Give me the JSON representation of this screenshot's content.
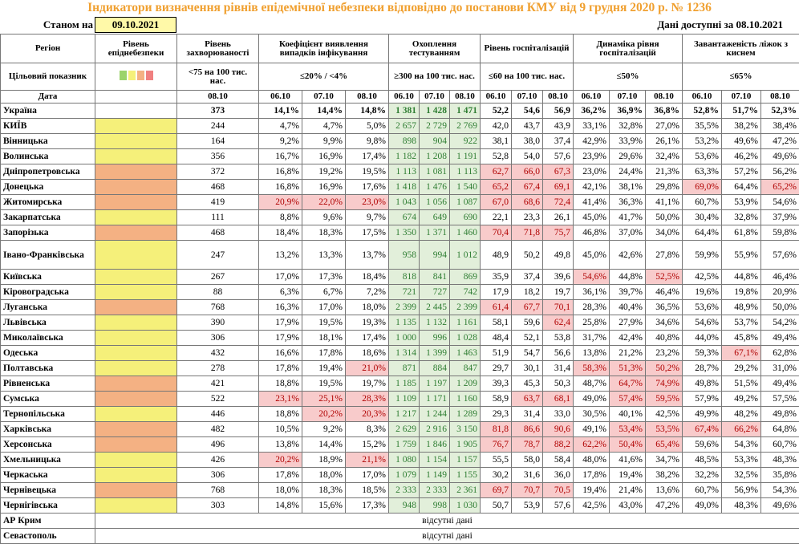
{
  "title": "Індикатори визначення рівнів епідемічної небезпеки відповідно до постанови КМУ від 9 грудня 2020 р. № 1236",
  "as_of_label": "Станом на",
  "as_of_date": "09.10.2021",
  "data_label": "Дані доступні за",
  "data_date": "08.10.2021",
  "header": {
    "region": "Регіон",
    "target": "Цільовий показник",
    "date": "Дата",
    "level": "Рівень епіднебезпеки",
    "groups": [
      {
        "name": "Рівень захворюваності",
        "target": "<75 на 100 тис. нас.",
        "dates": [
          "08.10"
        ]
      },
      {
        "name": "Коефіцієнт виявлення випадків інфікування",
        "target": "≤20% / <4%",
        "dates": [
          "06.10",
          "07.10",
          "08.10"
        ]
      },
      {
        "name": "Охоплення тестуванням",
        "target": "≥300 на 100 тис. нас.",
        "dates": [
          "06.10",
          "07.10",
          "08.10"
        ]
      },
      {
        "name": "Рівень госпіталізацій",
        "target": "≤60 на 100 тис. нас.",
        "dates": [
          "06.10",
          "07.10",
          "08.10"
        ]
      },
      {
        "name": "Динаміка рівня госпіталізацій",
        "target": "≤50%",
        "dates": [
          "06.10",
          "07.10",
          "08.10"
        ]
      },
      {
        "name": "Завантаженість ліжок з киснем",
        "target": "≤65%",
        "dates": [
          "06.10",
          "07.10",
          "08.10"
        ]
      }
    ]
  },
  "rows": [
    {
      "region": "Україна",
      "cells": [
        "373",
        "14,1%",
        "14,4%",
        "14,8%",
        "1 381",
        "1 428",
        "1 471",
        "52,2",
        "54,6",
        "56,9",
        "36,2%",
        "36,9%",
        "36,8%",
        "52,8%",
        "51,7%",
        "52,3%"
      ],
      "highlight": []
    },
    {
      "region": "КИЇВ",
      "level": "#f5f07a",
      "cells": [
        "244",
        "4,7%",
        "4,7%",
        "5,0%",
        "2 657",
        "2 729",
        "2 769",
        "42,0",
        "43,7",
        "43,9",
        "33,1%",
        "32,8%",
        "27,0%",
        "35,5%",
        "38,2%",
        "38,4%"
      ],
      "highlight": []
    },
    {
      "region": "Вінницька",
      "level": "#f5f07a",
      "cells": [
        "164",
        "9,2%",
        "9,9%",
        "9,8%",
        "898",
        "904",
        "922",
        "38,1",
        "38,0",
        "37,4",
        "42,9%",
        "33,9%",
        "26,1%",
        "53,2%",
        "49,6%",
        "47,2%"
      ],
      "highlight": []
    },
    {
      "region": "Волинська",
      "level": "#f5f07a",
      "cells": [
        "356",
        "16,7%",
        "16,9%",
        "17,4%",
        "1 182",
        "1 208",
        "1 191",
        "52,8",
        "54,0",
        "57,6",
        "23,9%",
        "29,6%",
        "32,4%",
        "53,6%",
        "46,2%",
        "49,6%"
      ],
      "highlight": []
    },
    {
      "region": "Дніпропетровська",
      "level": "#f4b183",
      "cells": [
        "372",
        "16,8%",
        "19,2%",
        "19,5%",
        "1 113",
        "1 081",
        "1 113",
        "62,7",
        "66,0",
        "67,3",
        "23,0%",
        "24,4%",
        "21,3%",
        "63,3%",
        "57,2%",
        "56,2%"
      ],
      "highlight": [
        7,
        8,
        9
      ]
    },
    {
      "region": "Донецька",
      "level": "#f4b183",
      "cells": [
        "468",
        "16,8%",
        "16,9%",
        "17,6%",
        "1 418",
        "1 476",
        "1 540",
        "65,2",
        "67,4",
        "69,1",
        "42,1%",
        "38,1%",
        "29,8%",
        "69,0%",
        "64,4%",
        "65,2%"
      ],
      "highlight": [
        7,
        8,
        9,
        13,
        15
      ]
    },
    {
      "region": "Житомирська",
      "level": "#f4b183",
      "cells": [
        "419",
        "20,9%",
        "22,0%",
        "23,0%",
        "1 043",
        "1 056",
        "1 087",
        "67,0",
        "68,6",
        "72,4",
        "41,4%",
        "36,3%",
        "41,1%",
        "60,7%",
        "53,9%",
        "54,6%"
      ],
      "highlight": [
        1,
        2,
        3,
        7,
        8,
        9
      ]
    },
    {
      "region": "Закарпатська",
      "level": "#f5f07a",
      "cells": [
        "111",
        "8,8%",
        "9,6%",
        "9,7%",
        "674",
        "649",
        "690",
        "22,1",
        "23,3",
        "26,1",
        "45,0%",
        "41,7%",
        "50,0%",
        "30,4%",
        "32,8%",
        "37,9%"
      ],
      "highlight": []
    },
    {
      "region": "Запорізька",
      "level": "#f4b183",
      "cells": [
        "468",
        "18,4%",
        "18,3%",
        "17,5%",
        "1 350",
        "1 371",
        "1 460",
        "70,4",
        "71,8",
        "75,7",
        "46,8%",
        "37,0%",
        "34,0%",
        "64,4%",
        "61,8%",
        "59,8%"
      ],
      "highlight": [
        7,
        8,
        9
      ]
    },
    {
      "region": "Івано-Франківська",
      "level": "#f5f07a",
      "cells": [
        "247",
        "13,2%",
        "13,3%",
        "13,7%",
        "958",
        "994",
        "1 012",
        "48,9",
        "50,2",
        "49,8",
        "45,0%",
        "42,6%",
        "27,8%",
        "59,9%",
        "55,9%",
        "57,6%"
      ],
      "highlight": []
    },
    {
      "region": "Київська",
      "level": "#f5f07a",
      "cells": [
        "267",
        "17,0%",
        "17,3%",
        "18,4%",
        "818",
        "841",
        "869",
        "35,9",
        "37,4",
        "39,6",
        "54,6%",
        "44,8%",
        "52,5%",
        "42,5%",
        "44,8%",
        "46,4%"
      ],
      "highlight": [
        10,
        12
      ]
    },
    {
      "region": "Кіровоградська",
      "level": "#f5f07a",
      "cells": [
        "88",
        "6,3%",
        "6,7%",
        "7,2%",
        "721",
        "727",
        "742",
        "17,9",
        "18,2",
        "19,7",
        "36,1%",
        "39,7%",
        "46,4%",
        "19,6%",
        "19,8%",
        "20,9%"
      ],
      "highlight": []
    },
    {
      "region": "Луганська",
      "level": "#f4b183",
      "cells": [
        "768",
        "16,3%",
        "17,0%",
        "18,0%",
        "2 399",
        "2 445",
        "2 399",
        "61,4",
        "67,7",
        "70,1",
        "28,3%",
        "40,4%",
        "36,5%",
        "53,6%",
        "48,9%",
        "50,0%"
      ],
      "highlight": [
        7,
        8,
        9
      ]
    },
    {
      "region": "Львівська",
      "level": "#f5f07a",
      "cells": [
        "390",
        "17,9%",
        "19,5%",
        "19,3%",
        "1 135",
        "1 132",
        "1 161",
        "58,1",
        "59,6",
        "62,4",
        "25,8%",
        "27,9%",
        "34,6%",
        "54,6%",
        "53,7%",
        "54,2%"
      ],
      "highlight": [
        9
      ]
    },
    {
      "region": "Миколаївська",
      "level": "#f5f07a",
      "cells": [
        "306",
        "17,9%",
        "18,1%",
        "17,4%",
        "1 000",
        "996",
        "1 028",
        "48,4",
        "52,1",
        "53,8",
        "31,7%",
        "42,4%",
        "40,8%",
        "44,0%",
        "45,8%",
        "49,4%"
      ],
      "highlight": []
    },
    {
      "region": "Одеська",
      "level": "#f5f07a",
      "cells": [
        "432",
        "16,6%",
        "17,8%",
        "18,6%",
        "1 314",
        "1 399",
        "1 463",
        "51,9",
        "54,7",
        "56,6",
        "13,8%",
        "21,2%",
        "23,2%",
        "59,3%",
        "67,1%",
        "62,8%"
      ],
      "highlight": [
        14
      ]
    },
    {
      "region": "Полтавська",
      "level": "#f5f07a",
      "cells": [
        "278",
        "17,8%",
        "19,4%",
        "21,0%",
        "871",
        "884",
        "847",
        "29,7",
        "30,1",
        "31,4",
        "58,3%",
        "51,3%",
        "50,2%",
        "28,7%",
        "29,2%",
        "31,0%"
      ],
      "highlight": [
        3,
        10,
        11,
        12
      ]
    },
    {
      "region": "Рівненська",
      "level": "#f4b183",
      "cells": [
        "421",
        "18,8%",
        "19,5%",
        "19,7%",
        "1 185",
        "1 197",
        "1 209",
        "39,3",
        "45,3",
        "50,3",
        "48,7%",
        "64,7%",
        "74,9%",
        "49,8%",
        "51,5%",
        "49,4%"
      ],
      "highlight": [
        11,
        12
      ]
    },
    {
      "region": "Сумська",
      "level": "#f4b183",
      "cells": [
        "522",
        "23,1%",
        "25,1%",
        "28,3%",
        "1 109",
        "1 171",
        "1 160",
        "58,9",
        "63,7",
        "68,1",
        "49,0%",
        "57,4%",
        "59,5%",
        "57,9%",
        "49,2%",
        "57,5%"
      ],
      "highlight": [
        1,
        2,
        3,
        8,
        9,
        11,
        12
      ]
    },
    {
      "region": "Тернопільська",
      "level": "#f5f07a",
      "cells": [
        "446",
        "18,8%",
        "20,2%",
        "20,3%",
        "1 217",
        "1 244",
        "1 289",
        "29,3",
        "31,4",
        "33,0",
        "30,5%",
        "40,1%",
        "42,5%",
        "49,9%",
        "48,2%",
        "49,8%"
      ],
      "highlight": [
        2,
        3
      ]
    },
    {
      "region": "Харківська",
      "level": "#f4b183",
      "cells": [
        "482",
        "10,5%",
        "9,2%",
        "8,3%",
        "2 629",
        "2 916",
        "3 150",
        "81,8",
        "86,6",
        "90,6",
        "49,1%",
        "53,4%",
        "53,5%",
        "67,4%",
        "66,2%",
        "64,8%"
      ],
      "highlight": [
        7,
        8,
        9,
        11,
        12,
        13,
        14
      ]
    },
    {
      "region": "Херсонська",
      "level": "#f4b183",
      "cells": [
        "496",
        "13,8%",
        "14,4%",
        "15,2%",
        "1 759",
        "1 846",
        "1 905",
        "76,7",
        "78,7",
        "88,2",
        "62,2%",
        "50,4%",
        "65,4%",
        "59,6%",
        "54,3%",
        "60,7%"
      ],
      "highlight": [
        7,
        8,
        9,
        10,
        11,
        12
      ]
    },
    {
      "region": "Хмельницька",
      "level": "#f5f07a",
      "cells": [
        "426",
        "20,2%",
        "18,9%",
        "21,1%",
        "1 080",
        "1 154",
        "1 157",
        "55,5",
        "58,0",
        "58,4",
        "48,0%",
        "41,6%",
        "34,7%",
        "48,5%",
        "53,3%",
        "48,3%"
      ],
      "highlight": [
        1,
        3
      ]
    },
    {
      "region": "Черкаська",
      "level": "#f5f07a",
      "cells": [
        "306",
        "17,8%",
        "18,0%",
        "17,0%",
        "1 079",
        "1 149",
        "1 155",
        "30,2",
        "31,6",
        "36,0",
        "17,8%",
        "19,4%",
        "38,2%",
        "32,2%",
        "32,5%",
        "35,8%"
      ],
      "highlight": []
    },
    {
      "region": "Чернівецька",
      "level": "#f4b183",
      "cells": [
        "768",
        "18,0%",
        "18,3%",
        "18,5%",
        "2 333",
        "2 333",
        "2 361",
        "69,7",
        "70,7",
        "70,5",
        "19,4%",
        "21,4%",
        "13,6%",
        "60,7%",
        "56,9%",
        "54,3%"
      ],
      "highlight": [
        7,
        8,
        9
      ]
    },
    {
      "region": "Чернігівська",
      "level": "#f5f07a",
      "cells": [
        "303",
        "14,8%",
        "15,6%",
        "17,3%",
        "948",
        "998",
        "1 030",
        "50,7",
        "53,9",
        "57,6",
        "42,5%",
        "43,0%",
        "47,2%",
        "49,0%",
        "48,3%",
        "49,6%"
      ],
      "highlight": []
    },
    {
      "region": "АР Крим",
      "note": "відсутні дані"
    },
    {
      "region": "Севастополь",
      "note": "відсутні дані"
    }
  ]
}
